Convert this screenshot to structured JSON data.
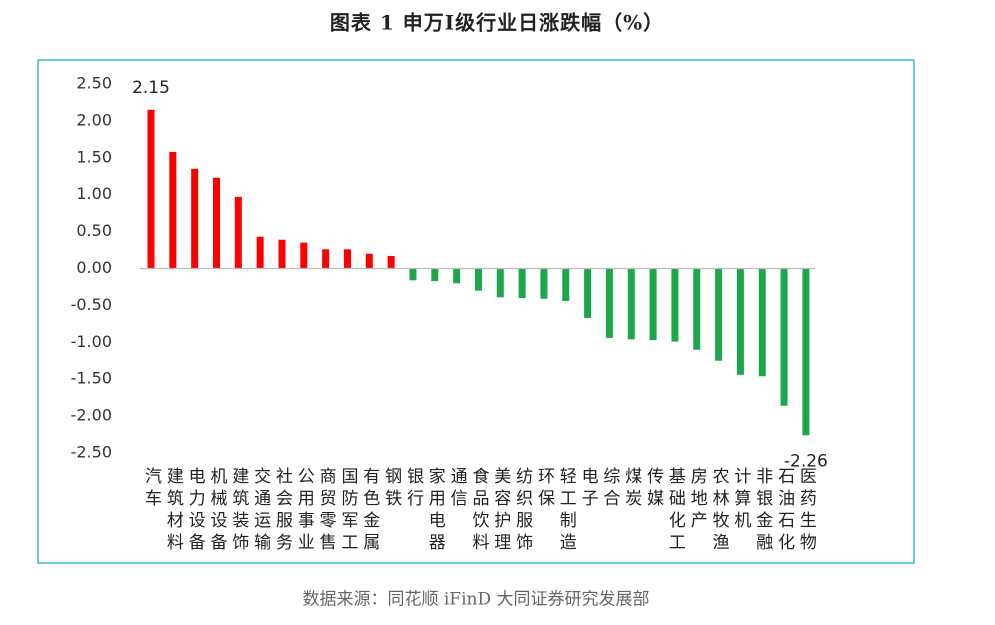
{
  "chart_data": {
    "type": "bar",
    "title": "图表 1  申万I级行业日涨跌幅（%）",
    "source": "数据来源：同花顺 iFinD 大同证券研究发展部",
    "categories": [
      "汽车",
      "建筑材料",
      "电力设备",
      "机械设备",
      "建筑装饰",
      "交通运输",
      "社会服务",
      "公用事业",
      "商贸零售",
      "国防军工",
      "有色金属",
      "钢铁",
      "银行",
      "家用电器",
      "通信",
      "食品饮料",
      "美容护理",
      "纺织服饰",
      "环保",
      "轻工制造",
      "电子",
      "综合",
      "煤炭",
      "传媒",
      "基础化工",
      "房地产",
      "农林牧渔",
      "计算机",
      "非银金融",
      "石油石化",
      "医药生物"
    ],
    "values": [
      2.15,
      1.58,
      1.35,
      1.23,
      0.97,
      0.43,
      0.39,
      0.35,
      0.26,
      0.26,
      0.2,
      0.17,
      -0.16,
      -0.17,
      -0.2,
      -0.3,
      -0.39,
      -0.4,
      -0.41,
      -0.44,
      -0.67,
      -0.94,
      -0.96,
      -0.97,
      -0.99,
      -1.1,
      -1.25,
      -1.44,
      -1.46,
      -1.86,
      -2.26
    ],
    "value_labels": [
      "2.15",
      null,
      null,
      null,
      null,
      null,
      null,
      null,
      null,
      null,
      null,
      null,
      null,
      null,
      null,
      null,
      null,
      null,
      null,
      null,
      null,
      null,
      null,
      null,
      null,
      null,
      null,
      null,
      null,
      null,
      "-2.26"
    ],
    "positive_color": "#ff0000",
    "negative_color": "#1ea64b",
    "ylim": [
      -2.5,
      2.5
    ],
    "yticks": [
      {
        "value": 2.5,
        "label": "2.50"
      },
      {
        "value": 2,
        "label": "2.00"
      },
      {
        "value": 1.5,
        "label": "1.50"
      },
      {
        "value": 1,
        "label": "1.00"
      },
      {
        "value": 0.5,
        "label": "0.50"
      },
      {
        "value": 0,
        "label": "0.00"
      },
      {
        "value": -0.5,
        "label": "-0.50"
      },
      {
        "value": -1,
        "label": "-1.00"
      },
      {
        "value": -1.5,
        "label": "-1.50"
      },
      {
        "value": -2,
        "label": "-2.00"
      },
      {
        "value": -2.5,
        "label": "-2.50"
      }
    ],
    "grid": false
  }
}
